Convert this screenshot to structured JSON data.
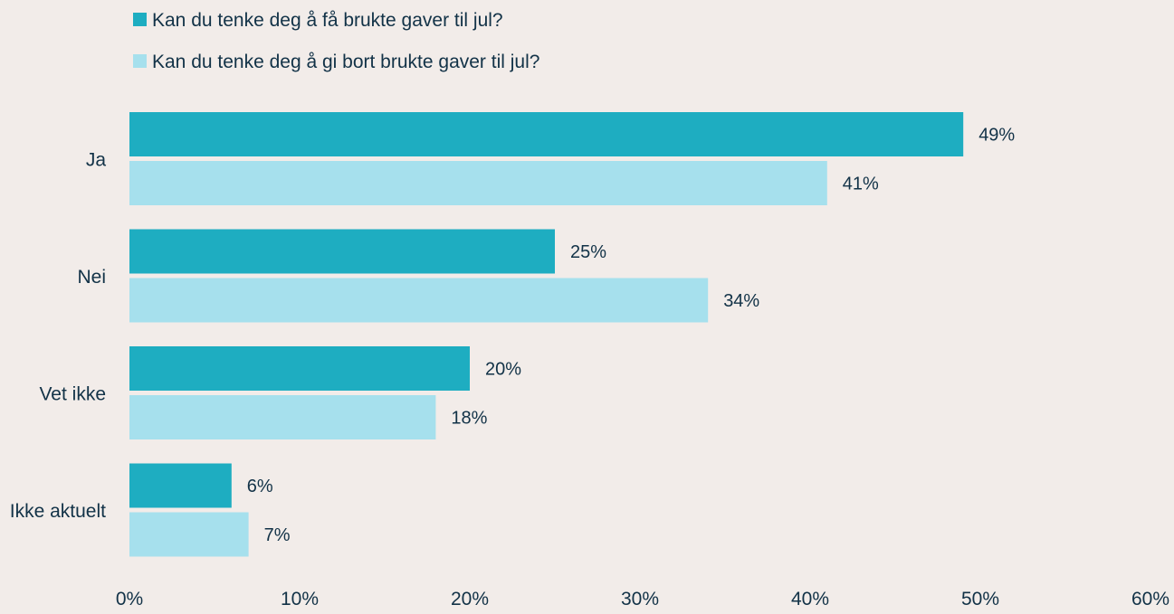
{
  "chart_data": {
    "type": "bar",
    "orientation": "horizontal",
    "categories": [
      "Ja",
      "Nei",
      "Vet ikke",
      "Ikke aktuelt"
    ],
    "series": [
      {
        "name": "Kan du tenke deg å få brukte gaver til jul?",
        "values": [
          49,
          25,
          20,
          6
        ],
        "labels": [
          "49%",
          "25%",
          "20%",
          "6%"
        ],
        "color": "#1eadc1"
      },
      {
        "name": "Kan du tenke deg å gi bort brukte gaver til jul?",
        "values": [
          41,
          34,
          18,
          7
        ],
        "labels": [
          "41%",
          "34%",
          "18%",
          "7%"
        ],
        "color": "#a6e0ed"
      }
    ],
    "xlim": [
      0,
      60
    ],
    "xticks": [
      0,
      10,
      20,
      30,
      40,
      50,
      60
    ],
    "xtick_labels": [
      "0%",
      "10%",
      "20%",
      "30%",
      "40%",
      "50%",
      "60%"
    ],
    "title": "",
    "xlabel": "",
    "ylabel": "",
    "grid": false,
    "legend_position": "top-left"
  },
  "colors": {
    "background": "#f2ece9",
    "text": "#123247"
  }
}
